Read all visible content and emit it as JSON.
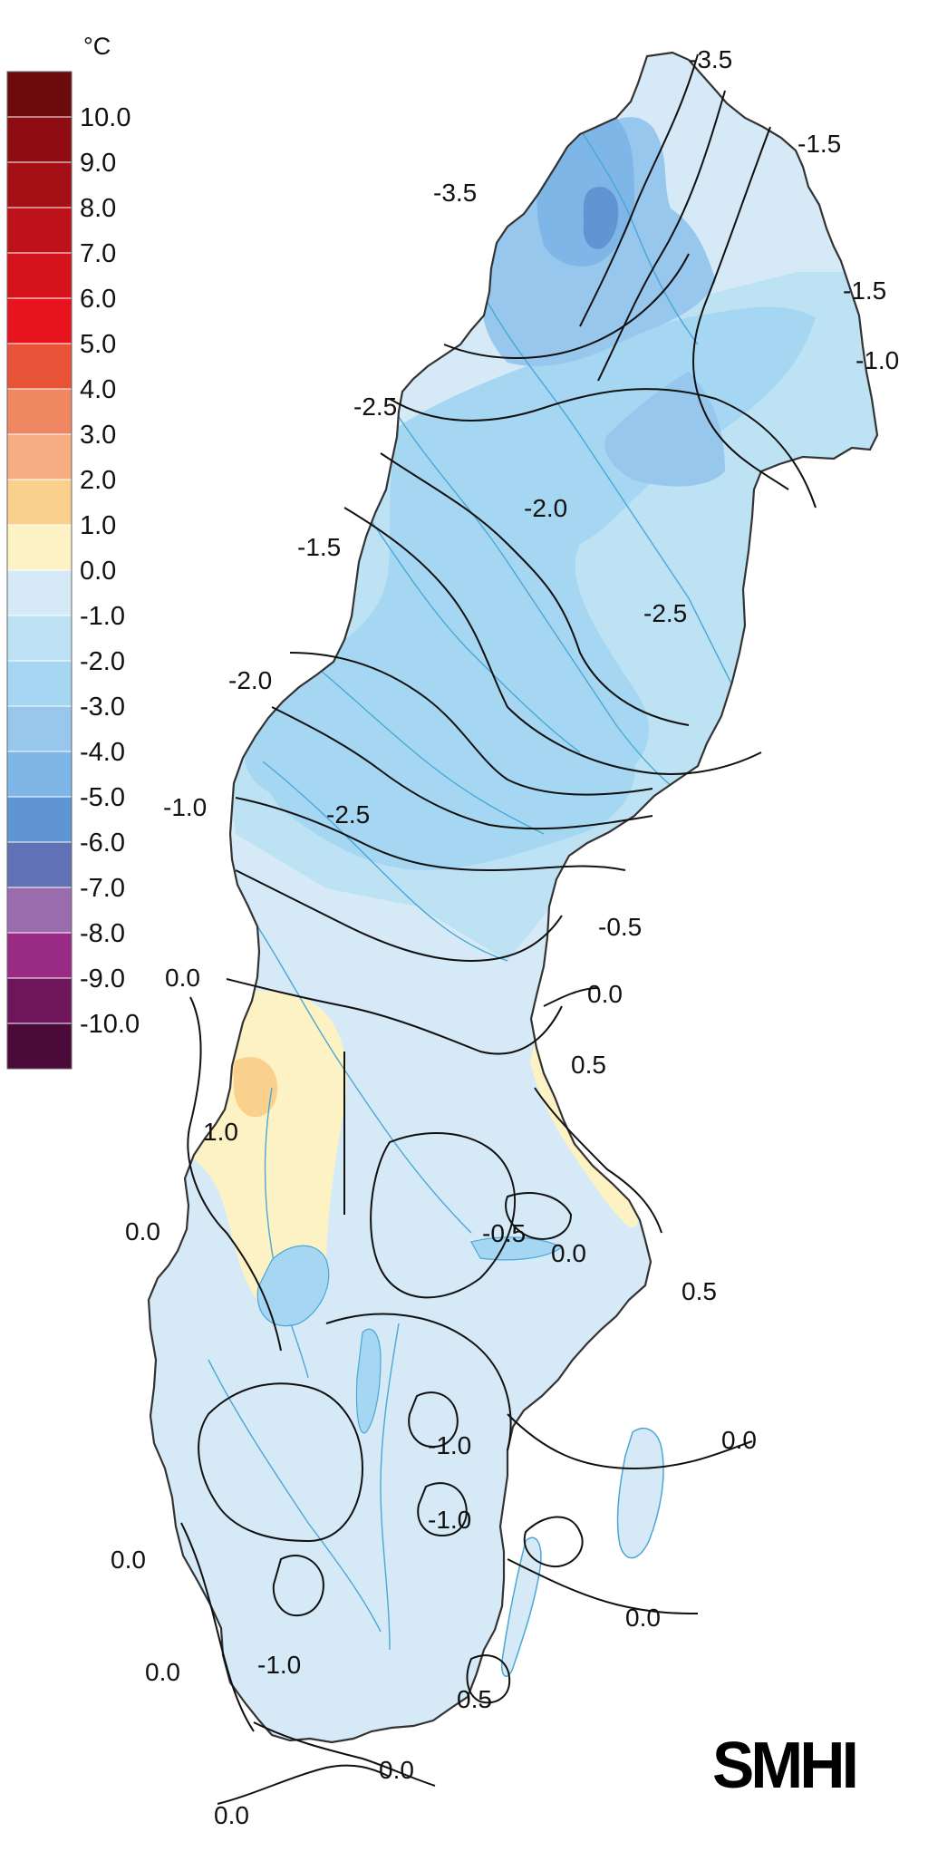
{
  "legend": {
    "unit": "°C",
    "bins": [
      {
        "label": "10.0",
        "color": "#6d0a0e"
      },
      {
        "label": "9.0",
        "color": "#8f0d12"
      },
      {
        "label": "8.0",
        "color": "#a51016"
      },
      {
        "label": "7.0",
        "color": "#bd121a"
      },
      {
        "label": "6.0",
        "color": "#d5131d"
      },
      {
        "label": "5.0",
        "color": "#e8141d"
      },
      {
        "label": "4.0",
        "color": "#e85338"
      },
      {
        "label": "3.0",
        "color": "#ef8762"
      },
      {
        "label": "2.0",
        "color": "#f6ad82"
      },
      {
        "label": "1.0",
        "color": "#fad18c"
      },
      {
        "label": "0.0",
        "color": "#fdf2c3"
      },
      {
        "label": "-1.0",
        "color": "#d5e9f6"
      },
      {
        "label": "-2.0",
        "color": "#bde2f4"
      },
      {
        "label": "-3.0",
        "color": "#a6d7f2"
      },
      {
        "label": "-4.0",
        "color": "#98c7ee"
      },
      {
        "label": "-5.0",
        "color": "#7eb6e8"
      },
      {
        "label": "-6.0",
        "color": "#5f95d3"
      },
      {
        "label": "-7.0",
        "color": "#6171b5"
      },
      {
        "label": "-8.0",
        "color": "#9b6cad"
      },
      {
        "label": "-9.0",
        "color": "#9a2b85"
      },
      {
        "label": "-10.0",
        "color": "#6e155c"
      },
      {
        "label": "",
        "color": "#4a0a3a"
      }
    ]
  },
  "contour_labels": [
    "-3.5",
    "-1.5",
    "-3.5",
    "-1.5",
    "-1.0",
    "-2.5",
    "-2.0",
    "-1.5",
    "-2.5",
    "-2.0",
    "-1.0",
    "-2.5",
    "-0.5",
    "0.0",
    "0.0",
    "0.5",
    "1.0",
    "0.0",
    "-0.5",
    "0.0",
    "0.5",
    "0.0",
    "-1.0",
    "-1.0",
    "0.0",
    "0.0",
    "0.0",
    "-1.0",
    "0.5",
    "0.0",
    "0.0"
  ],
  "colors": {
    "land_base": "#d5e9f6",
    "zone_minus2": "#bde2f4",
    "zone_minus3": "#a6d7f2",
    "zone_minus4": "#98c7ee",
    "zone_minus5": "#7eb6e8",
    "warm_0": "#fdf2c3",
    "warm_1": "#fad18c",
    "rivers": "#4aa7d6",
    "outline": "#333333",
    "contour": "#111111"
  },
  "logo": {
    "text": "SMHI"
  }
}
